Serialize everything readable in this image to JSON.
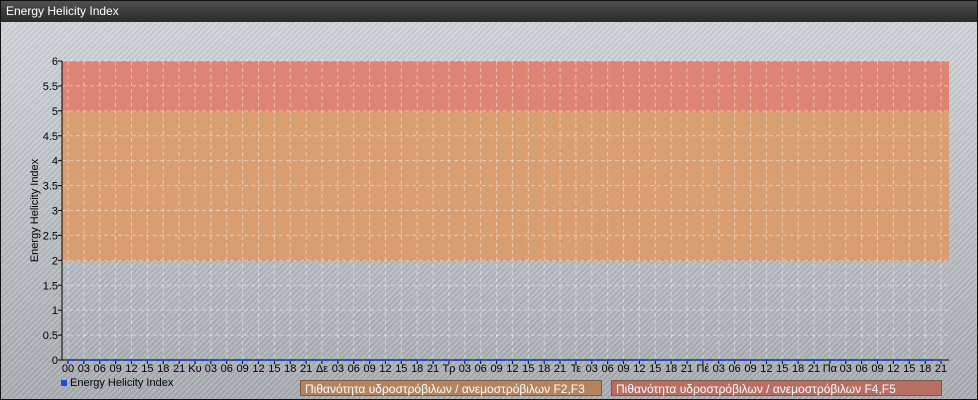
{
  "window": {
    "title": "Energy Helicity Index"
  },
  "chart_data": {
    "type": "line",
    "ylabel": "Energy Helicity Index",
    "ylim": [
      0,
      6
    ],
    "yticks": [
      "0",
      "0.5",
      "1",
      "1.5",
      "2",
      "2.5",
      "3",
      "3.5",
      "4",
      "4.5",
      "5",
      "5.5",
      "6"
    ],
    "xticks": [
      "00",
      "03",
      "06",
      "09",
      "12",
      "15",
      "18",
      "21",
      "Κυ",
      "03",
      "06",
      "09",
      "12",
      "15",
      "18",
      "21",
      "Δε",
      "03",
      "06",
      "09",
      "12",
      "15",
      "18",
      "21",
      "Τρ",
      "03",
      "06",
      "09",
      "12",
      "15",
      "18",
      "21",
      "Τε",
      "03",
      "06",
      "09",
      "12",
      "15",
      "18",
      "21",
      "Πέ",
      "03",
      "06",
      "09",
      "12",
      "15",
      "18",
      "21",
      "Πα",
      "03",
      "06",
      "09",
      "12",
      "15",
      "18",
      "21"
    ],
    "grid": true,
    "series": [
      {
        "name": "Energy Helicity Index",
        "color": "#1e4fd8",
        "values": [
          0,
          0,
          0,
          0,
          0,
          0,
          0,
          0,
          0,
          0,
          0,
          0,
          0,
          0,
          0,
          0,
          0,
          0,
          0,
          0,
          0,
          0,
          0,
          0,
          0,
          0,
          0,
          0,
          0,
          0,
          0,
          0,
          0,
          0,
          0,
          0,
          0,
          0,
          0,
          0,
          0,
          0,
          0,
          0,
          0,
          0,
          0,
          0,
          0,
          0,
          0,
          0,
          0,
          0,
          0,
          0
        ]
      }
    ],
    "bands": [
      {
        "label": "Πιθανότητα υδροστρόβιλων / ανεμοστρόβιλων F2,F3",
        "from": 2,
        "to": 5,
        "color": "#dc9a68",
        "legend_color": "#b4845f"
      },
      {
        "label": "Πιθανότητα υδροστρόβιλων / ανεμοστρόβιλων F4,F5",
        "from": 5,
        "to": 6,
        "color": "#e07c6a",
        "legend_color": "#b86e62"
      }
    ],
    "legend_placement": "bottom-left"
  }
}
